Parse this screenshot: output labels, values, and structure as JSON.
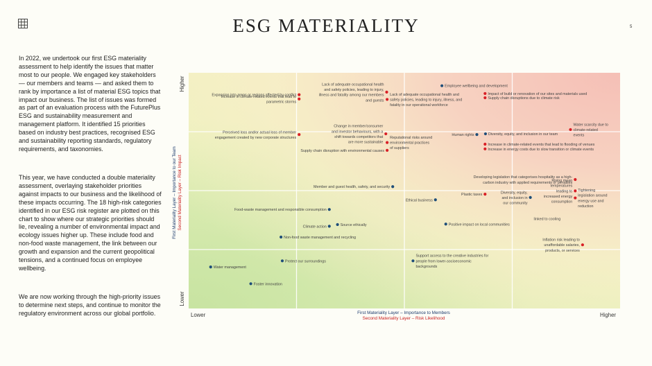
{
  "header": {
    "title": "ESG MATERIALITY",
    "page_number": "5",
    "grid_icon": "grid-icon"
  },
  "intro": {
    "p1": "In 2022, we undertook our first ESG materiality assessment to help identify the issues that matter most to our people. We engaged key stakeholders — our members and teams — and asked them to rank by importance a list of material ESG topics that impact our business. The list of issues was formed as part of an evaluation process with the FuturePlus ESG and sustainability measurement and management platform. It identified 15 priorities based on industry best practices, recognised ESG and sustainability reporting standards, regulatory requirements, and taxonomies.",
    "p2": "This year, we have conducted a double materiality assessment, overlaying stakeholder priorities against impacts to our business and the likelihood of these impacts occurring. The 18 high-risk categories identified in our ESG risk register are plotted on this chart to show where our strategic priorities should lie, revealing a number of environmental impact and ecology issues higher up. These include food and non-food waste management, the link between our growth and expansion and the current geopolitical tensions, and a continued focus on employee wellbeing.",
    "p3": "We are now working through the high-priority issues to determine next steps, and continue to monitor the regulatory environment across our global portfolio."
  },
  "chart_data": {
    "type": "scatter",
    "title": "",
    "xlabel": "First Materiality Layer – Importance to Members",
    "xlabel2": "Second Materiality Layer – Risk Likelihood",
    "ylabel": "First Materiality Layer – Importance to our Team",
    "ylabel2": "Second Materiality Layer – Risk Impact",
    "x_low": "Lower",
    "x_high": "Higher",
    "y_low": "Lower",
    "y_high": "Higher",
    "xlim": [
      0,
      100
    ],
    "ylim": [
      0,
      100
    ],
    "grid": "quadrants",
    "colors": {
      "blue": "#1f4e79",
      "red": "#d81f26"
    },
    "series": [
      {
        "color": "blue",
        "points": [
          {
            "x": 58.7,
            "y": 94.5,
            "label": "Employee wellbeing and development",
            "anchor": "start",
            "lines": [
              "Employee wellbeing and development"
            ]
          },
          {
            "x": 66.8,
            "y": 73.8,
            "label": "Human rights",
            "anchor": "end",
            "lines": [
              "Human rights"
            ]
          },
          {
            "x": 68.8,
            "y": 74.1,
            "label": "Diversity, equity, and inclusion in our team",
            "anchor": "start",
            "lines": [
              "Diversity, equity, and inclusion in our team"
            ]
          },
          {
            "x": 47.3,
            "y": 51.7,
            "label": "Member and guest health, safety, and security",
            "anchor": "end",
            "lines": [
              "Member and guest health, safety, and security"
            ]
          },
          {
            "x": 57.2,
            "y": 46.1,
            "label": "Ethical business",
            "anchor": "end",
            "lines": [
              "Ethical business"
            ]
          },
          {
            "x": 79.2,
            "y": 47.1,
            "label": "Diversity, equity, and inclusion in our community",
            "anchor": "end",
            "lines": [
              "Diversity, equity,",
              "and inclusion in",
              "our community"
            ]
          },
          {
            "x": 32.6,
            "y": 42.0,
            "label": "Food-waste management and responsible consumption",
            "anchor": "end",
            "lines": [
              "Food-waste management and responsible consumption"
            ]
          },
          {
            "x": 32.6,
            "y": 34.9,
            "label": "Climate action",
            "anchor": "end",
            "lines": [
              "Climate action"
            ]
          },
          {
            "x": 34.5,
            "y": 35.6,
            "label": "Source ethically",
            "anchor": "start",
            "lines": [
              "Source ethically"
            ]
          },
          {
            "x": 59.6,
            "y": 35.8,
            "label": "Positive impact on local communities",
            "anchor": "start",
            "lines": [
              "Positive impact on local communities"
            ]
          },
          {
            "x": 21.4,
            "y": 30.3,
            "label": "Non-food waste management and recycling",
            "anchor": "start",
            "lines": [
              "Non-food waste management and recycling"
            ]
          },
          {
            "x": 21.7,
            "y": 20.2,
            "label": "Protect our surroundings",
            "anchor": "start",
            "lines": [
              "Protect our surroundings"
            ]
          },
          {
            "x": 52.0,
            "y": 20.2,
            "label": "Support access to the creative industries for people from lower-socioeconomic backgrounds",
            "anchor": "start",
            "lines": [
              "Support access to the creative industries for",
              "people from lower-socioeconomic",
              "backgrounds"
            ]
          },
          {
            "x": 5.1,
            "y": 17.6,
            "label": "Water management",
            "anchor": "start",
            "lines": [
              "Water management"
            ]
          },
          {
            "x": 14.4,
            "y": 10.5,
            "label": "Foster innovation",
            "anchor": "start",
            "lines": [
              "Foster innovation"
            ]
          }
        ]
      },
      {
        "color": "red",
        "points": [
          {
            "x": 45.9,
            "y": 91.8,
            "label": "Lack of adequate occupational health and safety policies, leading to injury, illness and fatality among our members and guests",
            "anchor": "end",
            "lines": [
              "Lack of adequate occupational health",
              "and safety policies, leading to injury,",
              "illness and fatality among our members",
              "and guests"
            ]
          },
          {
            "x": 25.6,
            "y": 90.7,
            "label": "Expansion into areas or regions affected by conflict",
            "anchor": "end",
            "lines": [
              "Expansion into areas or regions affected by conflict"
            ]
          },
          {
            "x": 25.6,
            "y": 88.9,
            "label": "Increase in climate-related events that lead to parametric storms",
            "anchor": "end",
            "lines": [
              "Increase in climate-related events that lead to",
              "parametric storms"
            ]
          },
          {
            "x": 46.0,
            "y": 88.7,
            "label": "Lack of adequate occupational health and safety policies, leading to injury, illness, and fatality in our operational workforce",
            "anchor": "start",
            "lines": [
              "Lack of adequate occupational health and",
              "safety policies, leading to injury, illness, and",
              "fatality in our operational workforce"
            ]
          },
          {
            "x": 68.7,
            "y": 91.2,
            "label": "Impact of build or renovation of our sites and materials used",
            "anchor": "start",
            "lines": [
              "Impact of build or renovation of our sites and materials used"
            ]
          },
          {
            "x": 68.7,
            "y": 89.4,
            "label": "Supply chain disruptions due to climate risk",
            "anchor": "start",
            "lines": [
              "Supply chain disruptions due to climate risk"
            ]
          },
          {
            "x": 25.6,
            "y": 73.8,
            "label": "Perceived loss and/or actual loss of member engagement created by new corporate structures",
            "anchor": "end",
            "lines": [
              "Perceived loss and/or actual loss of member",
              "engagement created by new corporate structures"
            ]
          },
          {
            "x": 45.7,
            "y": 74.1,
            "label": "Change in member/consumer and investor behaviours, with a shift towards competitors that are more sustainable",
            "anchor": "end",
            "lines": [
              "Change in member/consumer",
              "and investor behaviours, with a",
              "shift towards competitors that",
              "are more sustainable"
            ]
          },
          {
            "x": 46.0,
            "y": 70.4,
            "label": "Reputational risks around environmental practices of suppliers",
            "anchor": "start",
            "lines": [
              "Reputational risks around",
              "environmental practices",
              "of suppliers"
            ]
          },
          {
            "x": 46.0,
            "y": 67.1,
            "label": "Supply chain disruption with environmental causes",
            "anchor": "end",
            "lines": [
              "Supply chain disruption with environmental causes"
            ]
          },
          {
            "x": 88.5,
            "y": 75.9,
            "label": "Water scarcity due to climate-related events",
            "anchor": "start",
            "lines": [
              "Water scarcity due to",
              "climate-related",
              "events"
            ]
          },
          {
            "x": 68.7,
            "y": 69.7,
            "label": "Increase in climate-related events that lead to flooding of venues",
            "anchor": "start",
            "lines": [
              "Increase in climate-related events that lead to flooding of venues"
            ]
          },
          {
            "x": 68.7,
            "y": 67.7,
            "label": "Increase in energy costs due to slow transition or climate events",
            "anchor": "start",
            "lines": [
              "Increase in energy costs due to slow transition or climate events"
            ]
          },
          {
            "x": 89.6,
            "y": 54.7,
            "label": "Developing legislation that categorises hospitality as a high-carbon industry with applied requirements or penalties",
            "anchor": "end",
            "lines": [
              "Developing legislation that categorises hospitality as a high-",
              "carbon industry with applied requirements or penalties"
            ]
          },
          {
            "x": 68.7,
            "y": 48.5,
            "label": "Plastic taxes",
            "anchor": "end",
            "lines": [
              "Plastic taxes"
            ]
          },
          {
            "x": 89.6,
            "y": 49.9,
            "label": "Rising mean temperatures leading to increased energy consumption",
            "anchor": "end",
            "lines": [
              "Rising mean",
              "temperatures",
              "leading to",
              "increased energy",
              "consumption"
            ]
          },
          {
            "x": 89.6,
            "y": 46.9,
            "label": "Tightening legislation around energy use and reduction",
            "anchor": "start",
            "lines": [
              "Tightening",
              "legislation around",
              "energy use and",
              "reduction"
            ]
          },
          {
            "x": 91.3,
            "y": 27.0,
            "label": "Inflation risk leading to unaffordable salaries, products, or services",
            "anchor": "end",
            "lines": [
              "Inflation risk leading to",
              "unaffordable salaries,",
              "products, or services"
            ]
          }
        ]
      }
    ],
    "extra_labels": [
      {
        "x": 83.1,
        "y": 37.5,
        "text": "linked to cooling"
      }
    ]
  }
}
